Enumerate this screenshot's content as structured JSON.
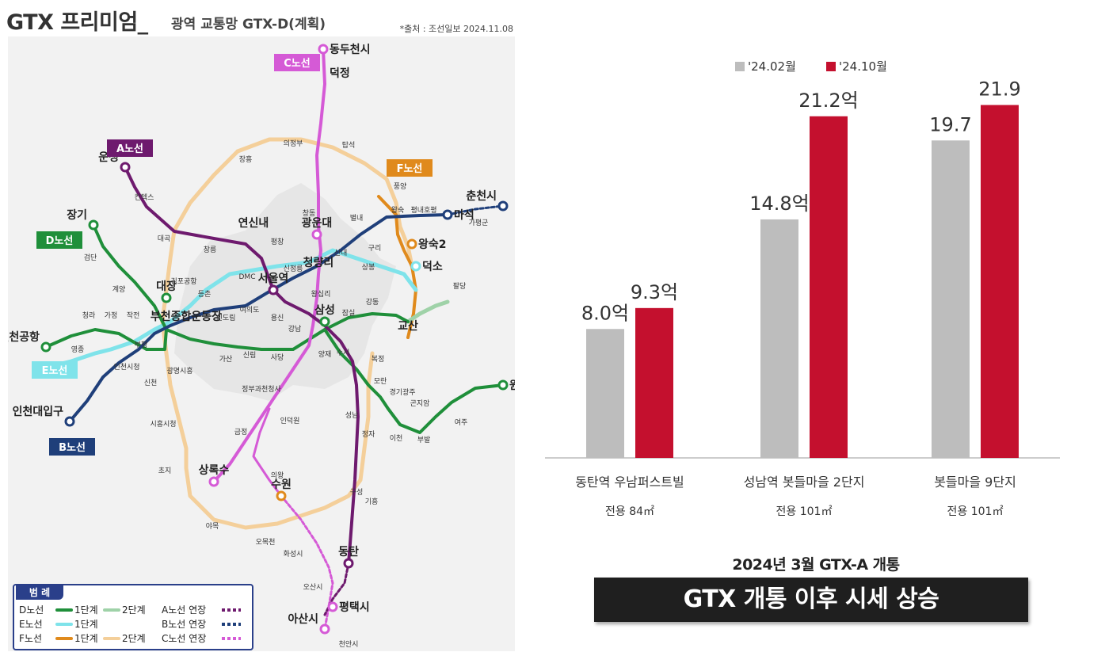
{
  "header": {
    "title": "GTX 프리미엄_",
    "subtitle": "광역 교통망 GTX-D(계획)",
    "source": "*출처 : 조선일보 2024.11.08"
  },
  "map": {
    "line_tags": {
      "a": "A노선",
      "b": "B노선",
      "c": "C노선",
      "d": "D노선",
      "e": "E노선",
      "f": "F노선"
    },
    "major_stations": [
      "동두천시",
      "덕정",
      "운정",
      "장기",
      "마석",
      "춘천시",
      "왕숙2",
      "덕소",
      "연신내",
      "광운대",
      "청량리",
      "서울역",
      "대장",
      "부천종합운동장",
      "인천공항",
      "삼성",
      "교산",
      "원주",
      "인천대입구",
      "상록수",
      "수원",
      "동탄",
      "평택시",
      "아산시"
    ],
    "minor_stations": [
      "의정부",
      "탑석",
      "장흥",
      "풍양",
      "킨텍스",
      "창동",
      "별내",
      "왕숙",
      "평내호평",
      "가평군",
      "대곡",
      "창릉",
      "평창",
      "신내",
      "구리",
      "김포공항",
      "DMC",
      "상봉",
      "신정릉",
      "팔당",
      "왕십리",
      "등촌",
      "검단",
      "계양",
      "청라",
      "가정",
      "작전",
      "영종",
      "여의도",
      "신도림",
      "용신",
      "강남",
      "잠실",
      "강동",
      "부평",
      "인천시청",
      "가산",
      "신림",
      "사당",
      "양재",
      "수서",
      "복정",
      "광명시흥",
      "모란",
      "경기광주",
      "곤지암",
      "신천",
      "정부과천청사",
      "인덕원",
      "성남",
      "이천",
      "부발",
      "여주",
      "시흥시청",
      "금정",
      "정자",
      "구성",
      "기흥",
      "의왕",
      "초지",
      "야목",
      "오목천",
      "화성시",
      "오산시",
      "천안시"
    ],
    "legend": {
      "title": "범 례",
      "d_line": "D노선",
      "e_line": "E노선",
      "f_line": "F노선",
      "phase1": "1단계",
      "phase2": "2단계",
      "a_ext": "A노선 연장",
      "b_ext": "B노선 연장",
      "c_ext": "C노선 연장"
    },
    "colors": {
      "a": "#6e1a6e",
      "b": "#1f3f7a",
      "c": "#d55ad6",
      "d": "#1f8f3a",
      "d2": "#9fd2a8",
      "e": "#7fe3ea",
      "f": "#e08a1c",
      "f2": "#f4cf9a",
      "seoul": "#e6e6e6"
    }
  },
  "chart_data": {
    "type": "bar",
    "categories": [
      "동탄역 우남퍼스트빌",
      "성남역 봇들마을 2단지",
      "봇들마을 9단지"
    ],
    "sublabels": [
      "전용 84㎡",
      "전용 101㎡",
      "전용 101㎡"
    ],
    "series": [
      {
        "name": "'24.02월",
        "values": [
          8.0,
          14.8,
          19.7
        ],
        "labels": [
          "8.0억",
          "14.8억",
          "19.7"
        ],
        "color": "#bdbdbd"
      },
      {
        "name": "'24.10월",
        "values": [
          9.3,
          21.2,
          21.9
        ],
        "labels": [
          "9.3억",
          "21.2억",
          "21.9"
        ],
        "color": "#c4102e"
      }
    ],
    "ylim": [
      0,
      23.5
    ],
    "legend_position": "top-left",
    "grid": false
  },
  "caption": {
    "small": "2024년 3월 GTX-A 개통",
    "big": "GTX 개통 이후 시세 상승"
  }
}
